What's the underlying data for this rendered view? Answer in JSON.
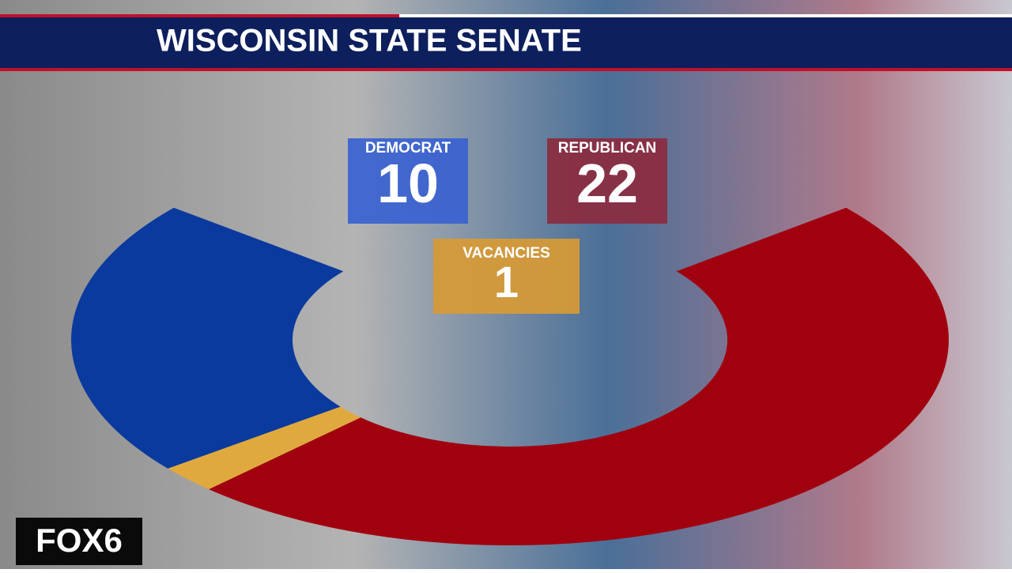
{
  "chart_data": {
    "type": "donut",
    "title": "WISCONSIN STATE SENATE",
    "categories": [
      "DEMOCRAT",
      "VACANCIES",
      "REPUBLICAN"
    ],
    "values": [
      10,
      1,
      22
    ],
    "colors": [
      "#0b3a9e",
      "#e0a93e",
      "#a1000f"
    ],
    "box_colors": [
      "#3a62d0",
      "#d89a35",
      "#8c2b3f"
    ]
  },
  "logo": "FOX6"
}
